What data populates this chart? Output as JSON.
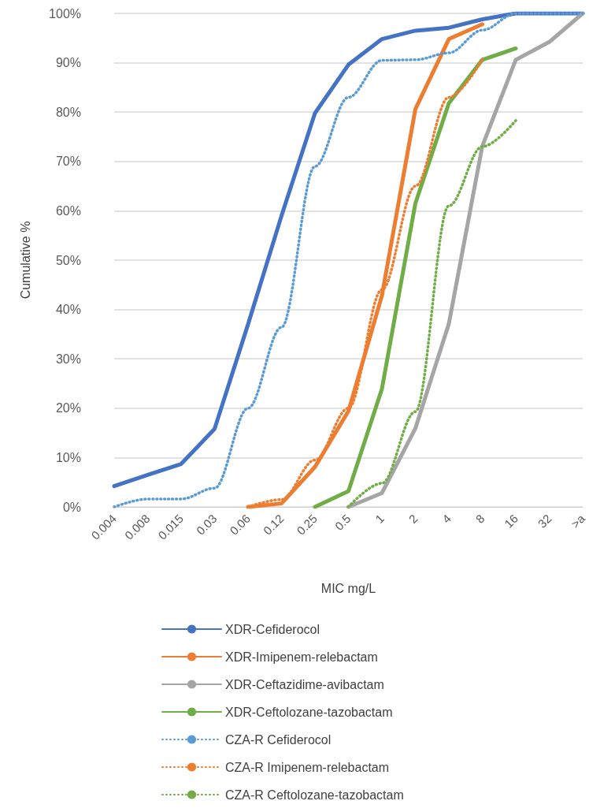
{
  "chart_data": {
    "type": "line",
    "xlabel": "MIC mg/L",
    "ylabel": "Cumulative %",
    "categories": [
      "0.004",
      "0.008",
      "0.015",
      "0.03",
      "0.06",
      "0.12",
      "0.25",
      "0.5",
      "1",
      "2",
      "4",
      "8",
      "16",
      "32",
      ">a"
    ],
    "ylim": [
      0,
      100
    ],
    "yticks": [
      {
        "value": 0,
        "label": "0%"
      },
      {
        "value": 10,
        "label": "10%"
      },
      {
        "value": 20,
        "label": "20%"
      },
      {
        "value": 30,
        "label": "30%"
      },
      {
        "value": 40,
        "label": "40%"
      },
      {
        "value": 50,
        "label": "50%"
      },
      {
        "value": 60,
        "label": "60%"
      },
      {
        "value": 70,
        "label": "70%"
      },
      {
        "value": 80,
        "label": "80%"
      },
      {
        "value": 90,
        "label": "90%"
      },
      {
        "value": 100,
        "label": "100%"
      }
    ],
    "grid": "y",
    "legend": "bottom",
    "marker": "none",
    "series": [
      {
        "name": "XDR-Cefiderocol",
        "color": "#4472c4",
        "line_style": "solid",
        "values": [
          4.2,
          6.5,
          8.7,
          15.8,
          37,
          59,
          79.8,
          89.6,
          94.8,
          96.5,
          97.1,
          98.8,
          100,
          100,
          100
        ]
      },
      {
        "name": "XDR-Imipenem-relebactam",
        "color": "#ed7d31",
        "line_style": "solid",
        "values": [
          null,
          null,
          null,
          null,
          0,
          0.7,
          8.1,
          19.4,
          42.8,
          80.6,
          94.8,
          97.8,
          null,
          null,
          null
        ]
      },
      {
        "name": "XDR-Ceftazidime-avibactam",
        "color": "#a5a5a5",
        "line_style": "solid",
        "values": [
          null,
          null,
          null,
          null,
          null,
          null,
          null,
          0,
          2.8,
          15.9,
          37.1,
          73.1,
          90.6,
          94.2,
          100
        ]
      },
      {
        "name": "XDR-Ceftolozane-tazobactam",
        "color": "#70ad47",
        "line_style": "solid",
        "values": [
          null,
          null,
          null,
          null,
          null,
          null,
          0,
          3.2,
          23.9,
          61.5,
          81.8,
          90.6,
          92.9,
          null,
          null
        ]
      },
      {
        "name": "CZA-R Cefiderocol",
        "color": "#5b9bd5",
        "line_style": "dotted",
        "values": [
          0,
          1.6,
          1.6,
          3.8,
          20,
          36.4,
          69,
          83,
          90.5,
          90.6,
          92,
          96.6,
          100,
          100,
          100
        ]
      },
      {
        "name": "CZA-R Imipenem-relebactam",
        "color": "#ed7d31",
        "line_style": "dotted",
        "values": [
          null,
          null,
          null,
          null,
          0,
          1.5,
          9.5,
          20,
          44,
          65,
          83,
          90.7,
          null,
          null,
          null
        ]
      },
      {
        "name": "CZA-R Ceftolozane-tazobactam",
        "color": "#70ad47",
        "line_style": "dotted",
        "values": [
          null,
          null,
          null,
          null,
          null,
          null,
          null,
          0,
          4.8,
          19.3,
          61,
          73,
          78.3,
          null,
          null
        ]
      }
    ]
  }
}
